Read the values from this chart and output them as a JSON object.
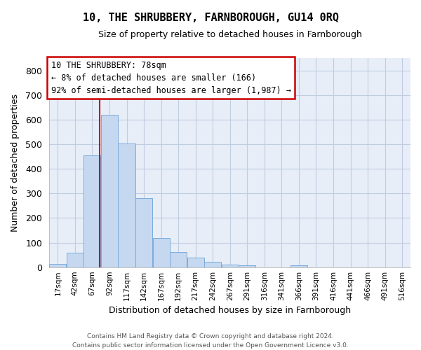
{
  "title": "10, THE SHRUBBERY, FARNBOROUGH, GU14 0RQ",
  "subtitle": "Size of property relative to detached houses in Farnborough",
  "xlabel": "Distribution of detached houses by size in Farnborough",
  "ylabel": "Number of detached properties",
  "bar_values": [
    12,
    58,
    455,
    620,
    503,
    280,
    118,
    63,
    40,
    22,
    10,
    8,
    0,
    0,
    8,
    0,
    0,
    0,
    0,
    0
  ],
  "bin_labels": [
    "17sqm",
    "42sqm",
    "67sqm",
    "92sqm",
    "117sqm",
    "142sqm",
    "167sqm",
    "192sqm",
    "217sqm",
    "242sqm",
    "267sqm",
    "291sqm",
    "316sqm",
    "341sqm",
    "366sqm",
    "391sqm",
    "416sqm",
    "441sqm",
    "466sqm",
    "491sqm",
    "516sqm"
  ],
  "bar_color": "#c5d8f0",
  "bar_edge_color": "#7aabdb",
  "vline_color": "#cc0000",
  "annotation_text": "10 THE SHRUBBERY: 78sqm\n← 8% of detached houses are smaller (166)\n92% of semi-detached houses are larger (1,987) →",
  "annotation_box_color": "white",
  "annotation_box_edge": "#cc0000",
  "ylim": [
    0,
    850
  ],
  "yticks": [
    0,
    100,
    200,
    300,
    400,
    500,
    600,
    700,
    800
  ],
  "footer": "Contains HM Land Registry data © Crown copyright and database right 2024.\nContains public sector information licensed under the Open Government Licence v3.0.",
  "bg_color": "#e8eef8",
  "grid_color": "#c0cce0",
  "bin_width": 25
}
